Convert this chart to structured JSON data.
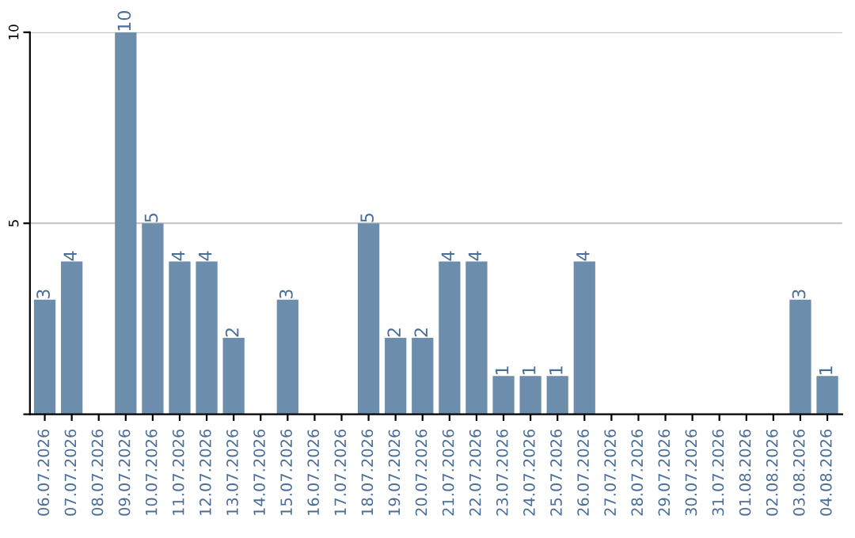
{
  "chart_data": {
    "type": "bar",
    "categories": [
      "06.07.2026",
      "07.07.2026",
      "08.07.2026",
      "09.07.2026",
      "10.07.2026",
      "11.07.2026",
      "12.07.2026",
      "13.07.2026",
      "14.07.2026",
      "15.07.2026",
      "16.07.2026",
      "17.07.2026",
      "18.07.2026",
      "19.07.2026",
      "20.07.2026",
      "21.07.2026",
      "22.07.2026",
      "23.07.2026",
      "24.07.2026",
      "25.07.2026",
      "26.07.2026",
      "27.07.2026",
      "28.07.2026",
      "29.07.2026",
      "30.07.2026",
      "31.07.2026",
      "01.08.2026",
      "02.08.2026",
      "03.08.2026",
      "04.08.2026"
    ],
    "values": [
      3,
      4,
      0,
      10,
      5,
      4,
      4,
      2,
      0,
      3,
      0,
      0,
      5,
      2,
      2,
      4,
      4,
      1,
      1,
      1,
      4,
      0,
      0,
      0,
      0,
      0,
      0,
      0,
      3,
      1
    ],
    "value_labels": [
      "3",
      "4",
      null,
      "10",
      "5",
      "4",
      "4",
      "2",
      null,
      "3",
      null,
      null,
      "5",
      "2",
      "2",
      "4",
      "4",
      "1",
      "1",
      "1",
      "4",
      null,
      null,
      null,
      null,
      null,
      null,
      null,
      "3",
      "1"
    ],
    "color": "#6d8dad",
    "ylim": [
      0,
      10
    ],
    "yticks": [
      {
        "value": 0,
        "label": null
      },
      5,
      10
    ],
    "grid": "y"
  }
}
